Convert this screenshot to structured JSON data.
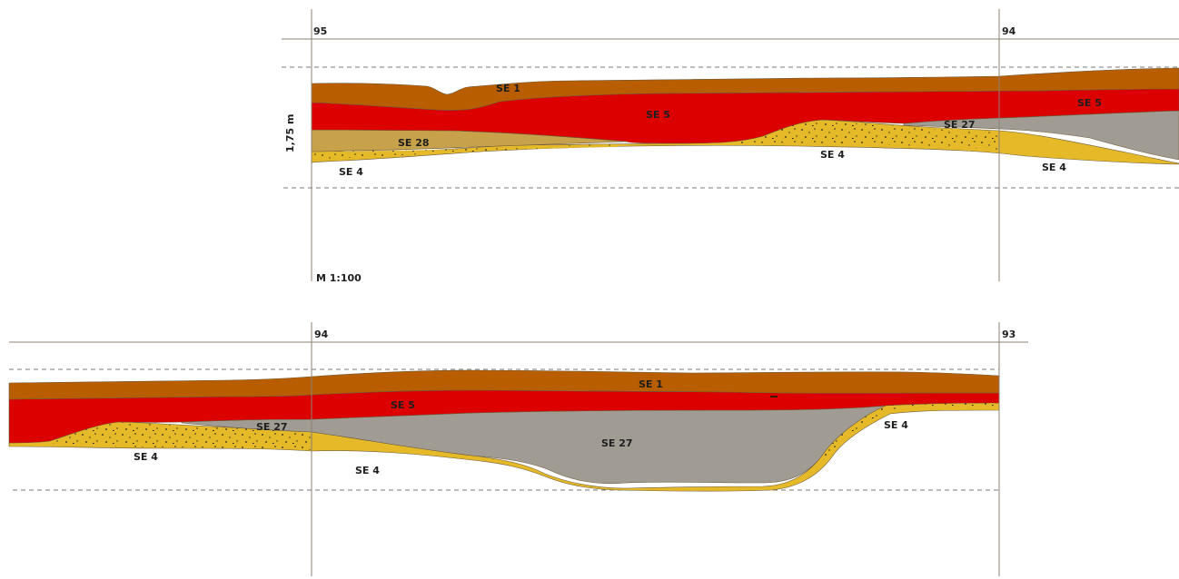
{
  "colors": {
    "topsoil_se1": "#b85d00",
    "red_se5": "#dd0000",
    "grey_se27": "#a09c94",
    "yellow_se4": "#e5b928",
    "khaki_se28": "#c8a24a",
    "grid": "#8c8074",
    "dash": "#7a7a7a"
  },
  "top_section": {
    "left_marker": "95",
    "right_marker": "94",
    "height_label": "1,75 m",
    "scale_label": "M 1:100",
    "labels": {
      "se1": "SE 1",
      "se5_mid": "SE 5",
      "se5_right": "SE 5",
      "se27": "SE 27",
      "se28": "SE 28",
      "se4_left": "SE 4",
      "se4_mid": "SE 4",
      "se4_right": "SE 4"
    }
  },
  "bottom_section": {
    "left_marker": "94",
    "right_marker": "93",
    "labels": {
      "se1": "SE 1",
      "se5": "SE 5",
      "se27_left": "SE 27",
      "se27_center": "SE 27",
      "se4_left": "SE 4",
      "se4_mid": "SE 4",
      "se4_right": "SE 4"
    }
  }
}
